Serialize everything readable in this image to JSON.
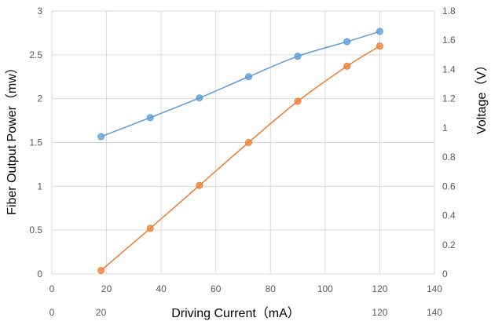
{
  "chart_data": {
    "type": "line",
    "title": "",
    "xlabel": "Driving Current（mA）",
    "ylabel": "Fiber Output Power（mw）",
    "y2label": "Voltage（V）",
    "xlim": [
      0,
      140
    ],
    "ylim": [
      0,
      3
    ],
    "y2lim": [
      0,
      1.8
    ],
    "x_ticks": [
      "0",
      "20",
      "40",
      "60",
      "80",
      "100",
      "120",
      "140"
    ],
    "y_ticks": [
      "0",
      "0.5",
      "1",
      "1.5",
      "2",
      "2.5",
      "3"
    ],
    "y2_ticks": [
      "0",
      "0.2",
      "0.4",
      "0.6",
      "0.8",
      "1",
      "1.2",
      "1.4",
      "1.6",
      "1.8"
    ],
    "extra_x_labels": [
      {
        "text": "0",
        "x": 0
      },
      {
        "text": "20",
        "x": 18
      },
      {
        "text": "120",
        "x": 120
      },
      {
        "text": "140",
        "x": 140
      }
    ],
    "grid": true,
    "legend": "none",
    "series": [
      {
        "axis": "left",
        "color": "#ED7D31",
        "x": [
          18,
          36,
          54,
          72,
          90,
          108,
          120
        ],
        "y": [
          0.04,
          0.52,
          1.01,
          1.5,
          1.97,
          2.37,
          2.6
        ]
      },
      {
        "axis": "right",
        "color": "#5B9BD5",
        "x": [
          18,
          36,
          54,
          72,
          90,
          108,
          120
        ],
        "y": [
          0.94,
          1.07,
          1.205,
          1.35,
          1.49,
          1.59,
          1.66
        ]
      }
    ]
  }
}
